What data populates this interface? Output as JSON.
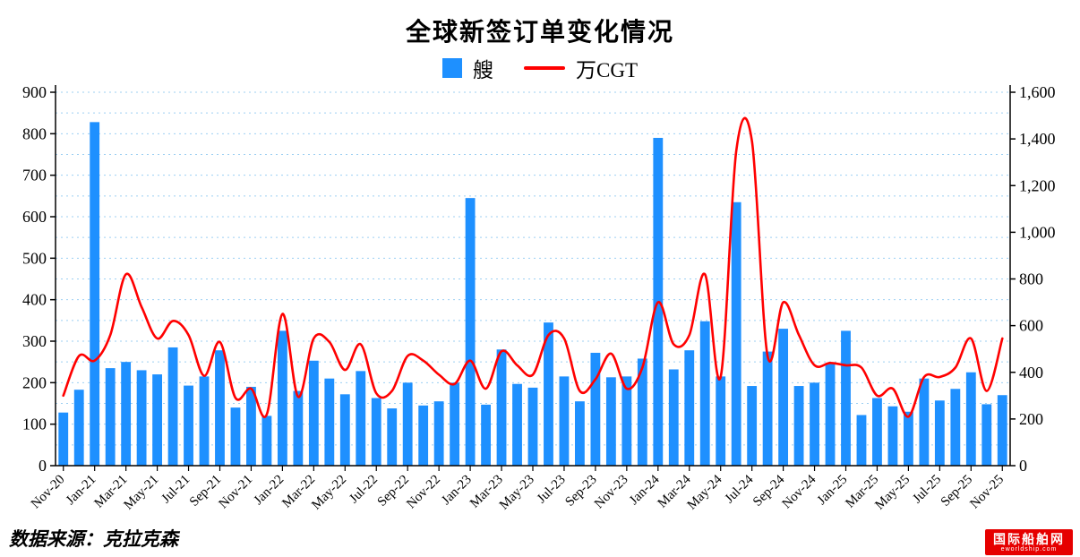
{
  "title": "全球新签订单变化情况",
  "legend": [
    {
      "label": "艘",
      "type": "bar",
      "color": "#1E90FF"
    },
    {
      "label": "万CGT",
      "type": "line",
      "color": "#FF0000"
    }
  ],
  "footer": {
    "source": "数据来源：克拉克森",
    "logo_main": "国际船舶网",
    "logo_sub": "eworldship.com"
  },
  "chart_data": {
    "type": "bar",
    "subtype": "bar-line-combo",
    "title": "全球新签订单变化情况",
    "legend_position": "top",
    "grid": {
      "show": true,
      "style": "dotted",
      "color": "#9CCFF2",
      "interval_left_axis": 50
    },
    "categories": [
      "Nov-20",
      "Dec-20",
      "Jan-21",
      "Feb-21",
      "Mar-21",
      "Apr-21",
      "May-21",
      "Jun-21",
      "Jul-21",
      "Aug-21",
      "Sep-21",
      "Oct-21",
      "Nov-21",
      "Dec-21",
      "Jan-22",
      "Feb-22",
      "Mar-22",
      "Apr-22",
      "May-22",
      "Jun-22",
      "Jul-22",
      "Aug-22",
      "Sep-22",
      "Oct-22",
      "Nov-22",
      "Dec-22",
      "Jan-23",
      "Feb-23",
      "Mar-23",
      "Apr-23",
      "May-23",
      "Jun-23",
      "Jul-23",
      "Aug-23",
      "Sep-23",
      "Oct-23",
      "Nov-23",
      "Dec-23",
      "Jan-24",
      "Feb-24",
      "Mar-24",
      "Apr-24",
      "May-24",
      "Jun-24",
      "Jul-24",
      "Aug-24",
      "Sep-24",
      "Oct-24",
      "Nov-24",
      "Dec-24",
      "Jan-25",
      "Feb-25",
      "Mar-25",
      "Apr-25",
      "May-25",
      "Jun-25",
      "Jul-25",
      "Aug-25",
      "Sep-25",
      "Oct-25",
      "Nov-25"
    ],
    "x_tick_every": 2,
    "series": [
      {
        "name": "艘",
        "type": "bar",
        "axis": "left",
        "color": "#1E90FF",
        "values": [
          128,
          183,
          828,
          235,
          250,
          230,
          220,
          285,
          193,
          215,
          278,
          140,
          190,
          120,
          325,
          180,
          253,
          210,
          172,
          228,
          163,
          138,
          200,
          145,
          155,
          200,
          645,
          147,
          280,
          197,
          188,
          345,
          215,
          155,
          272,
          213,
          215,
          258,
          790,
          232,
          278,
          348,
          215,
          635,
          192,
          275,
          330,
          192,
          200,
          247,
          325,
          122,
          163,
          143,
          130,
          210,
          157,
          185,
          225,
          148,
          170
        ]
      },
      {
        "name": "万CGT",
        "type": "line",
        "axis": "right",
        "color": "#FF0000",
        "values": [
          300,
          470,
          450,
          560,
          820,
          680,
          545,
          620,
          560,
          385,
          530,
          290,
          330,
          220,
          650,
          295,
          545,
          530,
          410,
          520,
          310,
          320,
          470,
          450,
          390,
          350,
          450,
          330,
          490,
          430,
          390,
          560,
          545,
          320,
          370,
          480,
          330,
          420,
          700,
          520,
          560,
          820,
          380,
          1350,
          1390,
          470,
          700,
          560,
          430,
          440,
          430,
          420,
          300,
          330,
          210,
          380,
          380,
          420,
          545,
          320,
          545
        ]
      }
    ],
    "left_axis": {
      "min": 0,
      "max": 900,
      "step": 100,
      "ticks": [
        "0",
        "100",
        "200",
        "300",
        "400",
        "500",
        "600",
        "700",
        "800",
        "900"
      ]
    },
    "right_axis": {
      "min": 0,
      "max": 1600,
      "step": 200,
      "ticks": [
        "0",
        "200",
        "400",
        "600",
        "800",
        "1,000",
        "1,200",
        "1,400",
        "1,600"
      ]
    }
  }
}
